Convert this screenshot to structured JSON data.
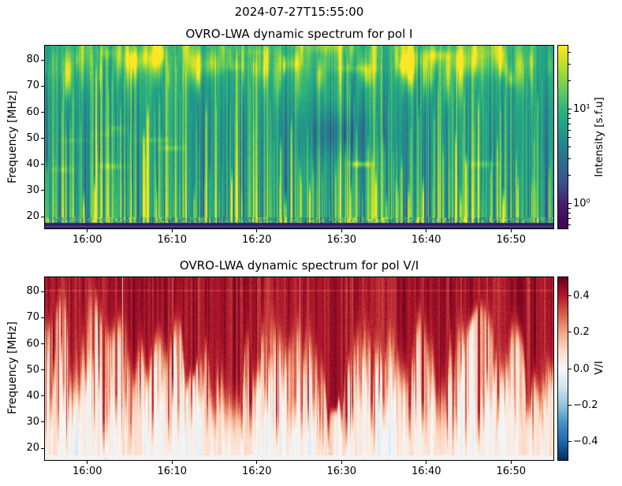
{
  "figure": {
    "suptitle": "2024-07-27T15:55:00",
    "background": "#ffffff"
  },
  "chart_data": [
    {
      "type": "heatmap",
      "title": "OVRO-LWA dynamic spectrum for pol I",
      "xlabel": "",
      "ylabel": "Frequency [MHz]",
      "x_range": [
        "15:55:00",
        "16:55:00"
      ],
      "x_span_min": 60,
      "x_ticks": [
        "16:00",
        "16:10",
        "16:20",
        "16:30",
        "16:40",
        "16:50"
      ],
      "x_tick_offsets_min": [
        5,
        15,
        25,
        35,
        45,
        55
      ],
      "y_ticks": [
        20,
        30,
        40,
        50,
        60,
        70,
        80
      ],
      "y_range_mhz": [
        15.5,
        85.5
      ],
      "grid": false,
      "colormap": "viridis",
      "colormap_stops": [
        [
          0.0,
          "#440154"
        ],
        [
          0.13,
          "#471d6c"
        ],
        [
          0.25,
          "#3b528b"
        ],
        [
          0.38,
          "#2c728e"
        ],
        [
          0.5,
          "#21918c"
        ],
        [
          0.62,
          "#27ad81"
        ],
        [
          0.75,
          "#5ec962"
        ],
        [
          0.87,
          "#aadc32"
        ],
        [
          1.0,
          "#fde725"
        ]
      ],
      "colorbar": {
        "label": "Intensity [s.f.u]",
        "scale": "log",
        "range_sfu": [
          0.55,
          47
        ],
        "ticks": [
          10,
          1
        ],
        "tick_labels": [
          "10¹",
          "10⁰"
        ]
      },
      "features": [
        "continuous teal-green background emission of a few s.f.u across 20-85 MHz",
        "dense narrow vertical type-III-like solar radio burst striations, brightest (yellow, tens of s.f.u) below ~40 MHz",
        "interleaved darker blue low-intensity vertical lanes",
        "bright yellow-green curtain patches above ~65 MHz, strongest 15:55-16:15 and 16:35-16:55",
        "darker blue-teal depression around 16:28-16:35 near 55-65 MHz with a small bright wisp near 52 MHz",
        "speckled bright row near 17-18 MHz and dark purple flagged band below ~17 MHz",
        "faint vertical flagged column near 16:04"
      ]
    },
    {
      "type": "heatmap",
      "title": "OVRO-LWA dynamic spectrum for pol V/I",
      "xlabel": "",
      "ylabel": "Frequency [MHz]",
      "x_range": [
        "15:55:00",
        "16:55:00"
      ],
      "x_span_min": 60,
      "x_ticks": [
        "16:00",
        "16:10",
        "16:20",
        "16:30",
        "16:40",
        "16:50"
      ],
      "x_tick_offsets_min": [
        5,
        15,
        25,
        35,
        45,
        55
      ],
      "y_ticks": [
        20,
        30,
        40,
        50,
        60,
        70,
        80
      ],
      "y_range_mhz": [
        15.5,
        85.5
      ],
      "grid": false,
      "colormap": "RdBu_r",
      "colormap_stops": [
        [
          0.0,
          "#053061"
        ],
        [
          0.1,
          "#2166ac"
        ],
        [
          0.2,
          "#4393c3"
        ],
        [
          0.3,
          "#92c5de"
        ],
        [
          0.4,
          "#d1e5f0"
        ],
        [
          0.5,
          "#f7f7f7"
        ],
        [
          0.6,
          "#fddbc7"
        ],
        [
          0.7,
          "#f4a582"
        ],
        [
          0.8,
          "#d6604d"
        ],
        [
          0.9,
          "#b2182b"
        ],
        [
          1.0,
          "#67001f"
        ]
      ],
      "colorbar": {
        "label": "V/I",
        "scale": "linear",
        "range": [
          -0.5,
          0.5
        ],
        "ticks": [
          0.4,
          0.2,
          0.0,
          -0.2,
          -0.4
        ],
        "tick_labels": [
          "0.4",
          "0.2",
          "0.0",
          "−0.2",
          "−0.4"
        ]
      },
      "features": [
        "strongly positive circular polarization fraction (dark red, V/I ~ +0.45-0.5) above ~55-65 MHz",
        "ragged lower boundary of the dark-red region with downward dark fingers, deepest around 16:20-16:35",
        "polarization fraction decreasing toward low frequencies, near zero (white) below ~25 MHz",
        "vertical burst striations of enhanced positive polarization reaching down to ~20 MHz",
        "faint lighter horizontal line near 80 MHz",
        "unpolarized light band below ~17 MHz",
        "faint vertical flagged column near 16:04"
      ]
    }
  ]
}
